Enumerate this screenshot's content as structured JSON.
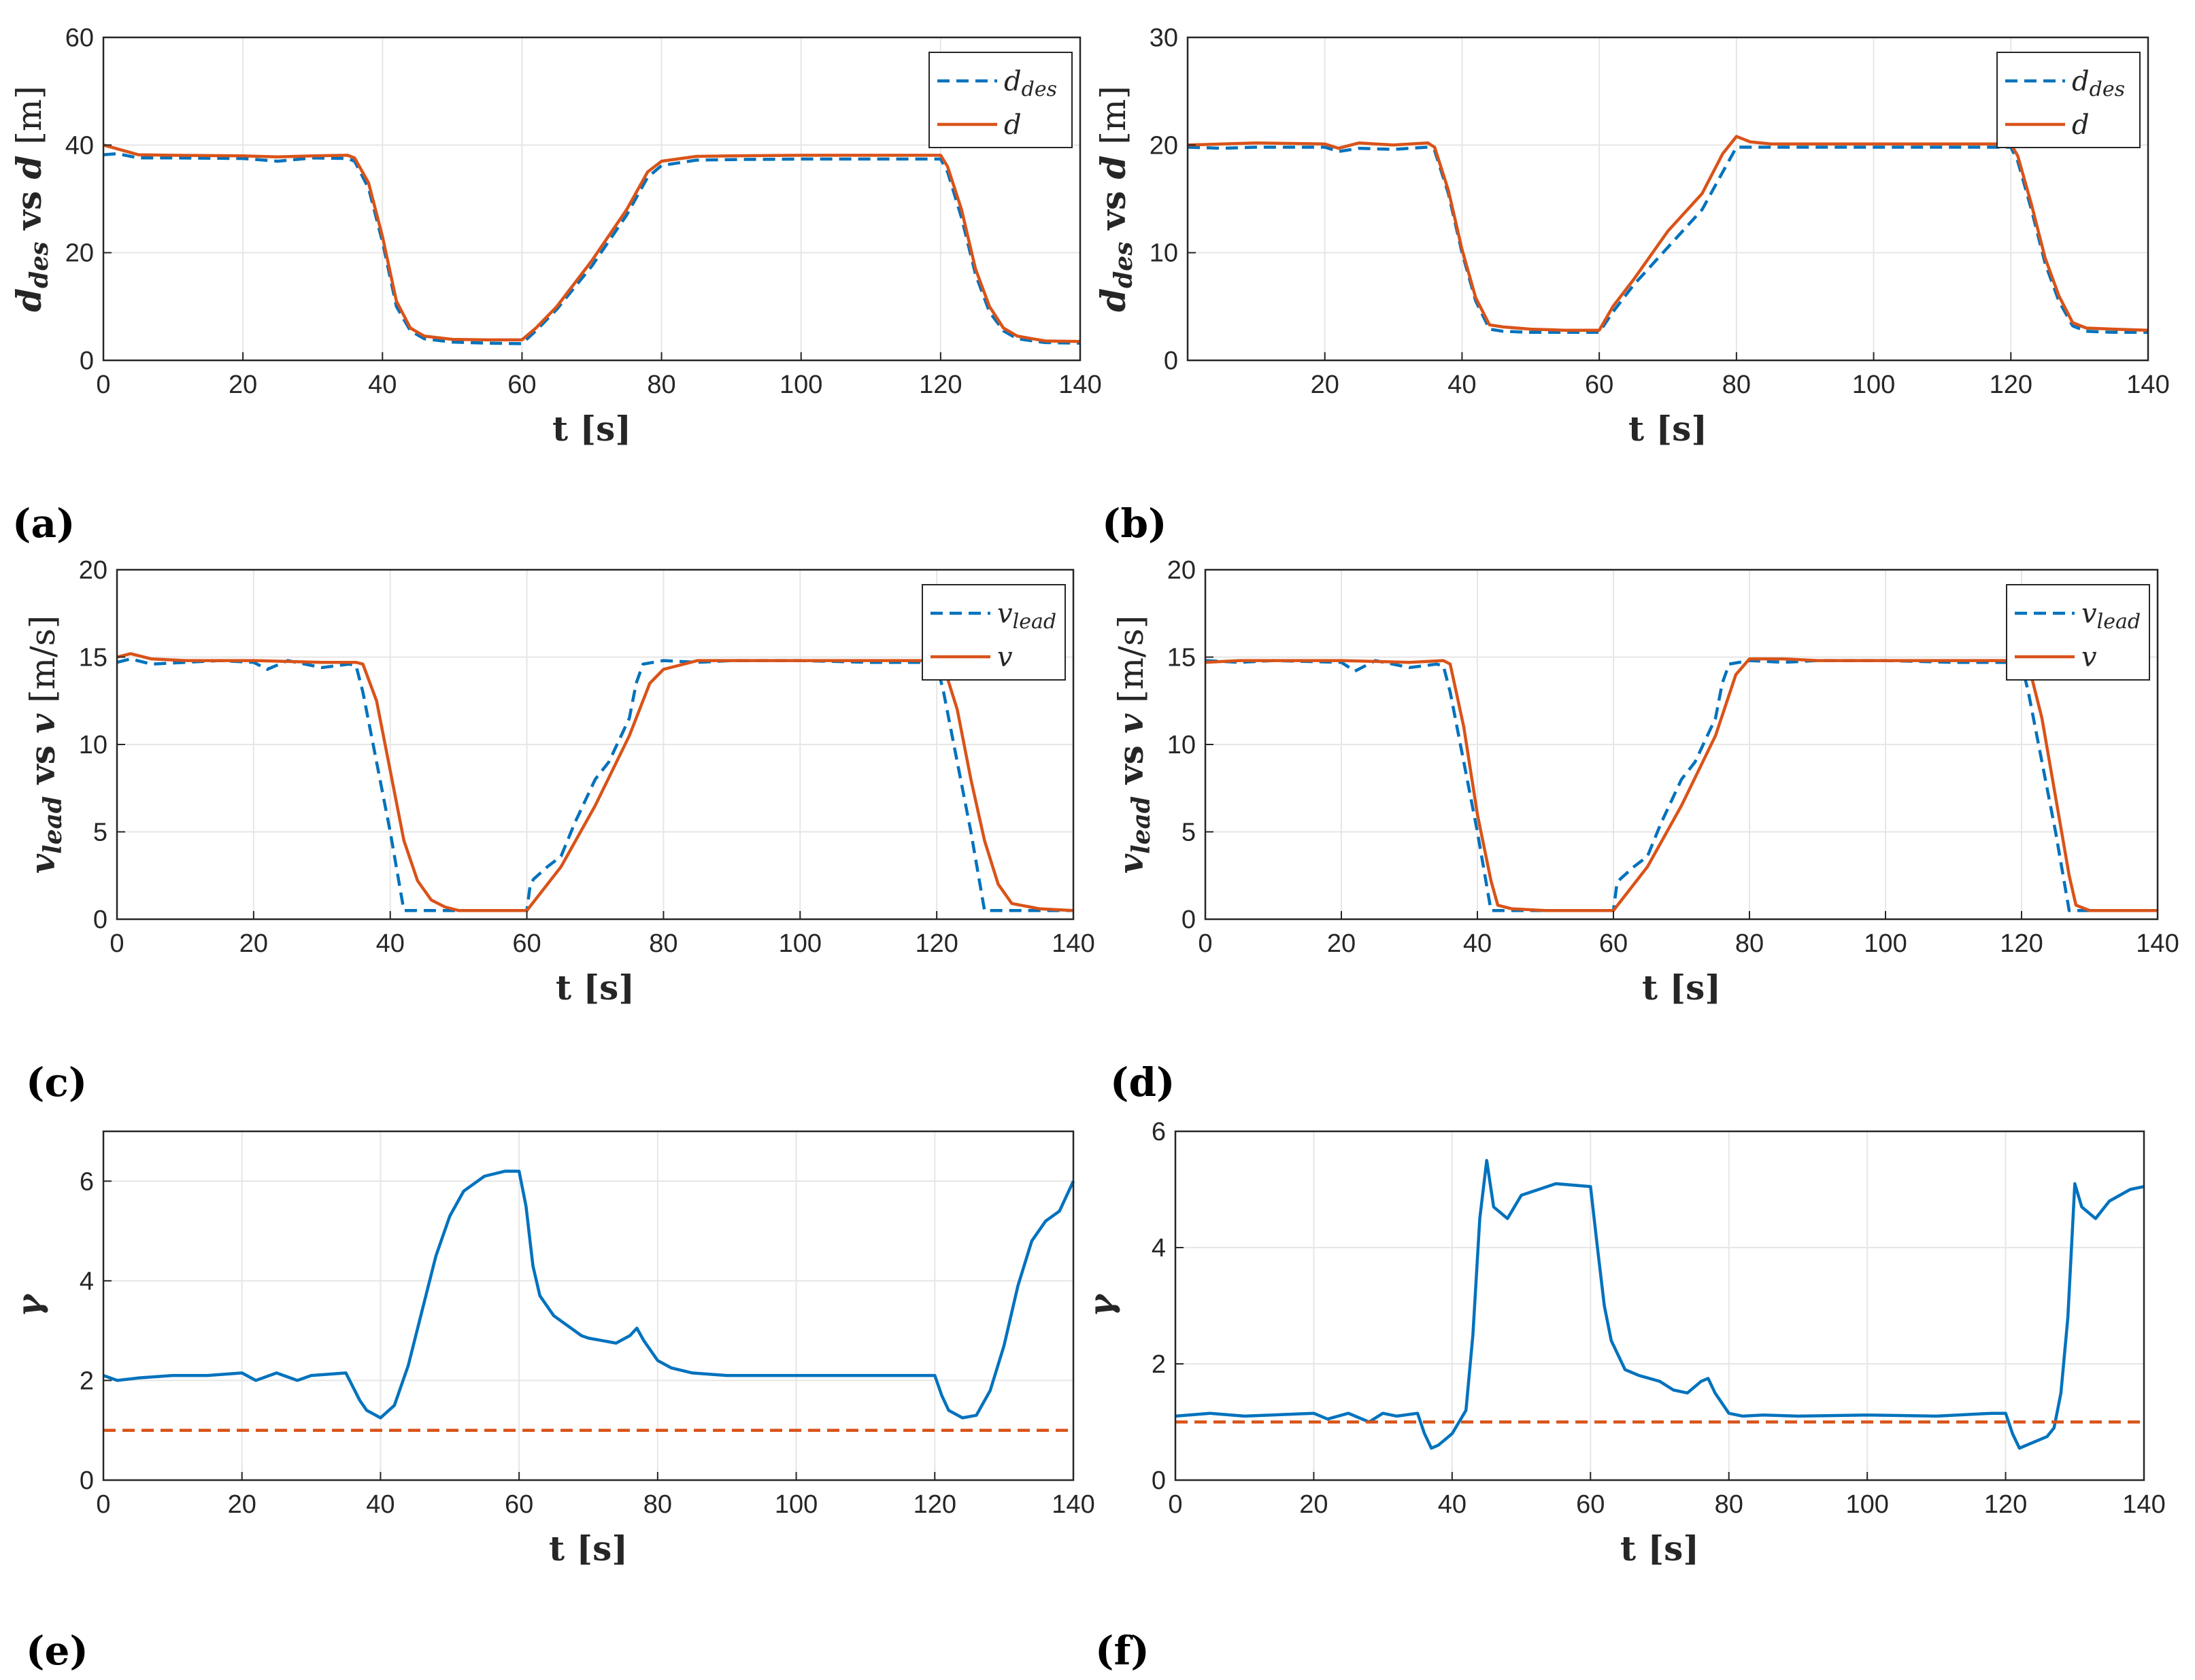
{
  "colors": {
    "blue": "#0072BD",
    "orange": "#D95319",
    "axis": "#262626",
    "grid": "#e6e6e6"
  },
  "chart_data": [
    {
      "id": "a",
      "panel_label": "(a)",
      "type": "line",
      "xlabel": "t [s]",
      "ylabel": "d_des vs d [m]",
      "xlim": [
        0,
        140
      ],
      "ylim": [
        0,
        60
      ],
      "xticks": [
        0,
        20,
        40,
        60,
        80,
        100,
        120,
        140
      ],
      "yticks": [
        0,
        20,
        40,
        60
      ],
      "legend": "top-right",
      "series": [
        {
          "name": "d_des",
          "legend_main": "d",
          "legend_sub": "des",
          "color": "#0072BD",
          "style": "dashed",
          "x": [
            0,
            2,
            5,
            10,
            20,
            25,
            30,
            35,
            36,
            38,
            40,
            42,
            44,
            46,
            50,
            55,
            60,
            62,
            65,
            70,
            75,
            78,
            80,
            85,
            90,
            100,
            110,
            120,
            121,
            123,
            125,
            127,
            129,
            131,
            135,
            140
          ],
          "y": [
            38.2,
            38.4,
            37.6,
            37.6,
            37.5,
            37.0,
            37.6,
            37.5,
            37.0,
            32.0,
            22.0,
            10.0,
            5.5,
            4.0,
            3.4,
            3.2,
            3.1,
            5.5,
            9.5,
            17.5,
            27.0,
            34.0,
            36.2,
            37.2,
            37.3,
            37.4,
            37.4,
            37.4,
            35.0,
            26.5,
            16.0,
            9.0,
            5.5,
            4.0,
            3.3,
            3.2
          ]
        },
        {
          "name": "d",
          "legend_main": "d",
          "legend_sub": "",
          "color": "#D95319",
          "style": "solid",
          "x": [
            0,
            2,
            5,
            10,
            20,
            25,
            30,
            35,
            36,
            38,
            40,
            42,
            44,
            46,
            50,
            55,
            60,
            62,
            65,
            70,
            75,
            78,
            80,
            85,
            90,
            100,
            110,
            120,
            121,
            123,
            125,
            127,
            129,
            131,
            135,
            140
          ],
          "y": [
            40.0,
            39.3,
            38.2,
            38.1,
            38.0,
            37.8,
            38.0,
            38.1,
            37.6,
            33.0,
            23.0,
            11.0,
            6.0,
            4.5,
            3.9,
            3.8,
            3.8,
            6.0,
            10.0,
            18.5,
            28.0,
            35.0,
            37.0,
            37.9,
            38.0,
            38.1,
            38.1,
            38.1,
            36.0,
            28.0,
            17.0,
            10.0,
            6.0,
            4.5,
            3.6,
            3.5
          ]
        }
      ]
    },
    {
      "id": "b",
      "panel_label": "(b)",
      "type": "line",
      "xlabel": "t [s]",
      "ylabel": "d_des vs d [m]",
      "xlim": [
        0,
        140
      ],
      "ylim": [
        0,
        30
      ],
      "xticks": [
        20,
        40,
        60,
        80,
        100,
        120,
        140
      ],
      "yticks": [
        0,
        10,
        20,
        30
      ],
      "legend": "top-right",
      "series": [
        {
          "name": "d_des",
          "legend_main": "d",
          "legend_sub": "des",
          "color": "#0072BD",
          "style": "dashed",
          "x": [
            0,
            5,
            10,
            20,
            22,
            25,
            30,
            35,
            36,
            38,
            40,
            42,
            44,
            46,
            50,
            55,
            60,
            62,
            65,
            70,
            75,
            78,
            80,
            85,
            90,
            100,
            110,
            120,
            121,
            123,
            125,
            127,
            129,
            131,
            135,
            140
          ],
          "y": [
            19.8,
            19.7,
            19.8,
            19.8,
            19.4,
            19.7,
            19.6,
            19.8,
            19.5,
            15.5,
            10.0,
            5.5,
            2.9,
            2.7,
            2.6,
            2.6,
            2.6,
            4.5,
            7.0,
            10.5,
            14.0,
            17.5,
            19.8,
            19.8,
            19.8,
            19.8,
            19.8,
            19.8,
            18.5,
            14.0,
            9.0,
            5.5,
            3.2,
            2.7,
            2.6,
            2.6
          ]
        },
        {
          "name": "d",
          "legend_main": "d",
          "legend_sub": "",
          "color": "#D95319",
          "style": "solid",
          "x": [
            0,
            5,
            10,
            20,
            22,
            25,
            30,
            35,
            36,
            38,
            40,
            42,
            44,
            46,
            50,
            55,
            60,
            62,
            65,
            70,
            75,
            78,
            80,
            82,
            85,
            90,
            100,
            110,
            120,
            121,
            123,
            125,
            127,
            129,
            131,
            135,
            140
          ],
          "y": [
            20.0,
            20.1,
            20.2,
            20.1,
            19.7,
            20.2,
            20.0,
            20.2,
            19.8,
            15.8,
            10.3,
            5.8,
            3.3,
            3.1,
            2.9,
            2.8,
            2.8,
            5.0,
            7.5,
            12.0,
            15.5,
            19.2,
            20.8,
            20.3,
            20.1,
            20.1,
            20.1,
            20.1,
            20.1,
            19.0,
            14.5,
            9.5,
            6.0,
            3.5,
            3.0,
            2.9,
            2.8
          ]
        }
      ]
    },
    {
      "id": "c",
      "panel_label": "(c)",
      "type": "line",
      "xlabel": "t [s]",
      "ylabel": "v_lead vs v [m/s]",
      "xlim": [
        0,
        140
      ],
      "ylim": [
        0,
        20
      ],
      "xticks": [
        0,
        20,
        40,
        60,
        80,
        100,
        120,
        140
      ],
      "yticks": [
        0,
        5,
        10,
        15,
        20
      ],
      "legend": "top-right",
      "series": [
        {
          "name": "v_lead",
          "legend_main": "v",
          "legend_sub": "lead",
          "color": "#0072BD",
          "style": "dashed",
          "x": [
            0,
            2,
            5,
            10,
            15,
            20,
            22,
            25,
            30,
            34,
            35,
            36,
            38,
            40,
            42,
            45,
            50,
            55,
            60,
            60.5,
            61,
            63,
            65,
            67,
            70,
            72,
            75,
            76,
            77,
            80,
            85,
            90,
            100,
            110,
            119,
            120,
            121,
            123,
            125,
            127,
            130,
            135,
            140
          ],
          "y": [
            14.7,
            14.9,
            14.6,
            14.7,
            14.8,
            14.7,
            14.3,
            14.8,
            14.4,
            14.6,
            14.5,
            13.0,
            9.0,
            5.0,
            0.5,
            0.5,
            0.5,
            0.5,
            0.5,
            2.0,
            2.3,
            3.0,
            3.6,
            5.5,
            8.0,
            9.0,
            11.5,
            13.5,
            14.6,
            14.8,
            14.7,
            14.8,
            14.8,
            14.7,
            14.7,
            14.6,
            13.0,
            9.0,
            5.0,
            0.5,
            0.5,
            0.5,
            0.5
          ]
        },
        {
          "name": "v",
          "legend_main": "v",
          "legend_sub": "",
          "color": "#D95319",
          "style": "solid",
          "x": [
            0,
            2,
            5,
            10,
            20,
            30,
            35,
            36,
            38,
            40,
            42,
            44,
            46,
            48,
            50,
            55,
            60,
            62,
            65,
            70,
            75,
            78,
            80,
            85,
            90,
            100,
            110,
            120,
            121,
            123,
            125,
            127,
            129,
            131,
            135,
            140
          ],
          "y": [
            15.0,
            15.2,
            14.9,
            14.8,
            14.8,
            14.7,
            14.7,
            14.6,
            12.5,
            8.5,
            4.5,
            2.2,
            1.1,
            0.7,
            0.5,
            0.5,
            0.5,
            1.5,
            3.0,
            6.5,
            10.5,
            13.5,
            14.3,
            14.8,
            14.8,
            14.8,
            14.8,
            14.8,
            14.5,
            12.0,
            8.0,
            4.5,
            2.0,
            0.9,
            0.6,
            0.5
          ]
        }
      ]
    },
    {
      "id": "d",
      "panel_label": "(d)",
      "type": "line",
      "xlabel": "t [s]",
      "ylabel": "v_lead vs v [m/s]",
      "xlim": [
        0,
        140
      ],
      "ylim": [
        0,
        20
      ],
      "xticks": [
        0,
        20,
        40,
        60,
        80,
        100,
        120,
        140
      ],
      "yticks": [
        0,
        5,
        10,
        15,
        20
      ],
      "legend": "top-right",
      "series": [
        {
          "name": "v_lead",
          "legend_main": "v",
          "legend_sub": "lead",
          "color": "#0072BD",
          "style": "dashed",
          "x": [
            0,
            5,
            10,
            20,
            22,
            25,
            30,
            34,
            35,
            36,
            38,
            40,
            42,
            45,
            50,
            55,
            60,
            60.5,
            61,
            63,
            65,
            67,
            70,
            72,
            75,
            76,
            77,
            80,
            85,
            90,
            100,
            110,
            119,
            120,
            121,
            123,
            125,
            127,
            130,
            135,
            140
          ],
          "y": [
            14.8,
            14.7,
            14.8,
            14.7,
            14.2,
            14.8,
            14.4,
            14.6,
            14.5,
            13.0,
            9.0,
            5.0,
            0.5,
            0.5,
            0.5,
            0.5,
            0.5,
            2.0,
            2.3,
            3.0,
            3.6,
            5.5,
            8.0,
            9.0,
            11.5,
            13.5,
            14.6,
            14.8,
            14.7,
            14.8,
            14.8,
            14.7,
            14.7,
            14.6,
            13.0,
            9.0,
            5.0,
            0.5,
            0.5,
            0.5,
            0.5
          ]
        },
        {
          "name": "v",
          "legend_main": "v",
          "legend_sub": "",
          "color": "#D95319",
          "style": "solid",
          "x": [
            0,
            5,
            10,
            20,
            30,
            35,
            36,
            38,
            40,
            42,
            43,
            45,
            50,
            55,
            60,
            62,
            65,
            70,
            75,
            78,
            80,
            85,
            90,
            100,
            110,
            120,
            121,
            123,
            125,
            127,
            128,
            130,
            135,
            140
          ],
          "y": [
            14.7,
            14.8,
            14.8,
            14.8,
            14.7,
            14.8,
            14.6,
            11.0,
            6.0,
            2.2,
            0.8,
            0.6,
            0.5,
            0.5,
            0.5,
            1.5,
            3.0,
            6.5,
            10.5,
            14.0,
            14.9,
            14.9,
            14.8,
            14.8,
            14.8,
            14.8,
            14.6,
            11.5,
            7.0,
            2.5,
            0.8,
            0.5,
            0.5,
            0.5
          ]
        }
      ]
    },
    {
      "id": "e",
      "panel_label": "(e)",
      "type": "line",
      "xlabel": "t [s]",
      "ylabel": "γ",
      "xlim": [
        0,
        140
      ],
      "ylim": [
        0,
        7
      ],
      "xticks": [
        0,
        20,
        40,
        60,
        80,
        100,
        120,
        140
      ],
      "yticks": [
        0,
        2,
        4,
        6
      ],
      "legend": "none",
      "series": [
        {
          "name": "gamma",
          "color": "#0072BD",
          "style": "solid",
          "x": [
            0,
            2,
            5,
            10,
            15,
            20,
            22,
            25,
            28,
            30,
            35,
            37,
            38,
            40,
            42,
            44,
            46,
            48,
            50,
            52,
            55,
            58,
            60,
            61,
            62,
            63,
            65,
            67,
            69,
            70,
            72,
            74,
            76,
            77,
            78,
            80,
            82,
            85,
            90,
            100,
            110,
            118,
            120,
            121,
            122,
            124,
            126,
            128,
            130,
            132,
            134,
            136,
            138,
            140
          ],
          "y": [
            2.1,
            2.0,
            2.05,
            2.1,
            2.1,
            2.15,
            2.0,
            2.15,
            2.0,
            2.1,
            2.15,
            1.6,
            1.4,
            1.25,
            1.5,
            2.3,
            3.4,
            4.5,
            5.3,
            5.8,
            6.1,
            6.2,
            6.2,
            5.5,
            4.3,
            3.7,
            3.3,
            3.1,
            2.9,
            2.85,
            2.8,
            2.75,
            2.9,
            3.05,
            2.8,
            2.4,
            2.25,
            2.15,
            2.1,
            2.1,
            2.1,
            2.1,
            2.1,
            1.7,
            1.4,
            1.25,
            1.3,
            1.8,
            2.7,
            3.9,
            4.8,
            5.2,
            5.4,
            6.0
          ]
        },
        {
          "name": "threshold",
          "color": "#D95319",
          "style": "dashed",
          "x": [
            0,
            140
          ],
          "y": [
            1.0,
            1.0
          ]
        }
      ]
    },
    {
      "id": "f",
      "panel_label": "(f)",
      "type": "line",
      "xlabel": "t [s]",
      "ylabel": "γ",
      "xlim": [
        0,
        140
      ],
      "ylim": [
        0,
        6
      ],
      "xticks": [
        0,
        20,
        40,
        60,
        80,
        100,
        120,
        140
      ],
      "yticks": [
        0,
        2,
        4,
        6
      ],
      "legend": "none",
      "series": [
        {
          "name": "gamma",
          "color": "#0072BD",
          "style": "solid",
          "x": [
            0,
            5,
            10,
            20,
            22,
            25,
            28,
            30,
            32,
            35,
            36,
            37,
            38,
            40,
            42,
            43,
            44,
            45,
            46,
            48,
            50,
            55,
            60,
            61,
            62,
            63,
            65,
            67,
            70,
            72,
            74,
            76,
            77,
            78,
            80,
            82,
            85,
            90,
            100,
            110,
            118,
            120,
            121,
            122,
            124,
            126,
            127,
            128,
            129,
            130,
            131,
            133,
            135,
            138,
            140
          ],
          "y": [
            1.1,
            1.15,
            1.1,
            1.15,
            1.05,
            1.15,
            1.0,
            1.15,
            1.1,
            1.15,
            0.8,
            0.55,
            0.6,
            0.8,
            1.2,
            2.5,
            4.5,
            5.5,
            4.7,
            4.5,
            4.9,
            5.1,
            5.05,
            4.0,
            3.0,
            2.4,
            1.9,
            1.8,
            1.7,
            1.55,
            1.5,
            1.7,
            1.75,
            1.5,
            1.15,
            1.1,
            1.12,
            1.1,
            1.12,
            1.1,
            1.15,
            1.15,
            0.8,
            0.55,
            0.65,
            0.75,
            0.9,
            1.5,
            2.8,
            5.1,
            4.7,
            4.5,
            4.8,
            5.0,
            5.05
          ]
        },
        {
          "name": "threshold",
          "color": "#D95319",
          "style": "dashed",
          "x": [
            0,
            140
          ],
          "y": [
            1.0,
            1.0
          ]
        }
      ]
    }
  ]
}
